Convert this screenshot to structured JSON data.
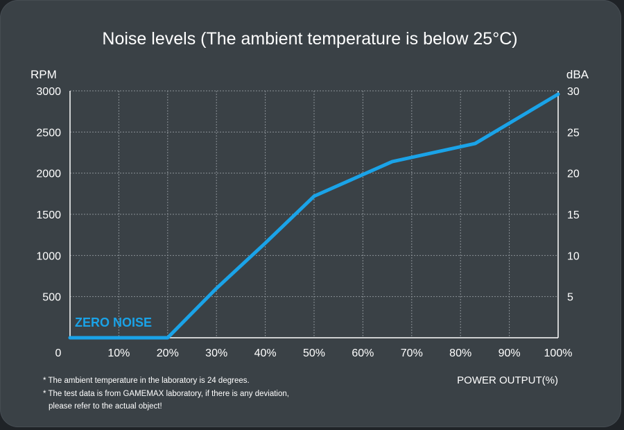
{
  "colors": {
    "background": "#3a4146",
    "grid": "#8a9196",
    "axis": "#ffffff",
    "series": "#1aa3e8"
  },
  "chart_data": {
    "type": "line",
    "title": "Noise levels (The ambient temperature is below 25°C)",
    "xlabel": "POWER OUTPUT(%)",
    "ylabel_left": "RPM",
    "ylabel_right": "dBA",
    "x_ticks": [
      "0",
      "10%",
      "20%",
      "30%",
      "40%",
      "50%",
      "60%",
      "70%",
      "80%",
      "90%",
      "100%"
    ],
    "y_ticks_left": [
      "500",
      "1000",
      "1500",
      "2000",
      "2500",
      "3000"
    ],
    "y_ticks_right": [
      "5",
      "10",
      "15",
      "20",
      "25",
      "30"
    ],
    "xlim": [
      0,
      100
    ],
    "ylim_left": [
      0,
      3000
    ],
    "ylim_right": [
      0,
      30
    ],
    "grid": true,
    "annotation": "ZERO NOISE",
    "series": [
      {
        "x": [
          0,
          20,
          30,
          40,
          50,
          66,
          83,
          100
        ],
        "y": [
          0,
          0,
          600,
          1150,
          1720,
          2140,
          2360,
          2960
        ]
      }
    ]
  },
  "notes": [
    "* The ambient temperature in the laboratory is 24 degrees.",
    "* The test data is from GAMEMAX laboratory, if there is any deviation,",
    "please refer to the actual object!"
  ]
}
